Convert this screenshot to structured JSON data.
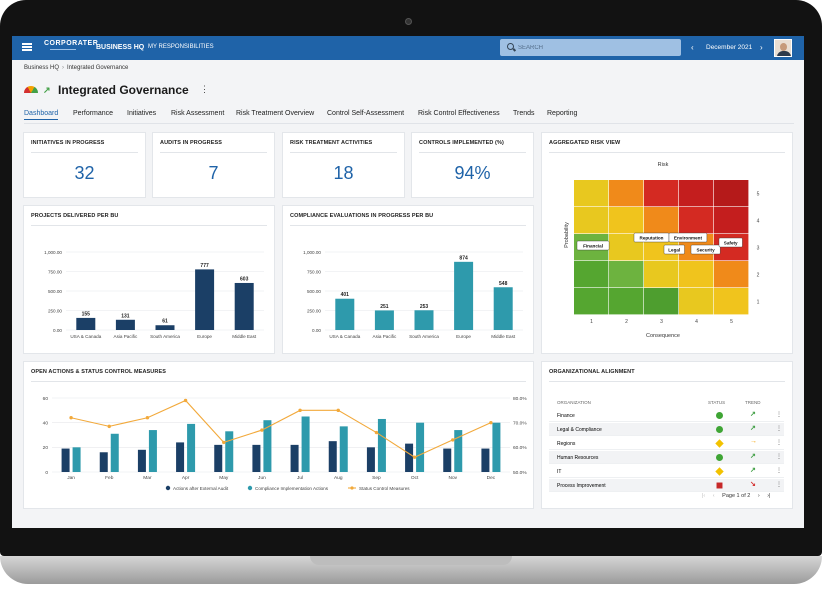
{
  "topbar": {
    "logo": "CORPORATER",
    "nav_primary": "BUSINESS HQ",
    "nav_secondary": "MY RESPONSIBILITIES",
    "search_placeholder": "SEARCH",
    "prev_icon": "‹",
    "period": "December 2021",
    "next_icon": "›",
    "brand_color": "#1f63a8"
  },
  "breadcrumb": {
    "root": "Business HQ",
    "separator": "›",
    "current": "Integrated Governance"
  },
  "page": {
    "title": "Integrated Governance",
    "kebab": "⋮",
    "trend_icon": "arrow-up-right-icon",
    "gauge_icon": "gauge-icon"
  },
  "tabs": [
    "Dashboard",
    "Performance",
    "Initiatives",
    "Risk Assessment",
    "Risk Treatment Overview",
    "Control Self-Assessment",
    "Risk Control Effectiveness",
    "Trends",
    "Reporting"
  ],
  "kpis": [
    {
      "title": "INITIATIVES IN PROGRESS",
      "value": "32"
    },
    {
      "title": "AUDITS IN PROGRESS",
      "value": "7"
    },
    {
      "title": "RISK TREATMENT ACTIVITIES",
      "value": "18"
    },
    {
      "title": "CONTROLS IMPLEMENTED (%)",
      "value": "94%"
    }
  ],
  "risk_view": {
    "title": "AGGREGATED RISK VIEW",
    "top_label": "Risk",
    "x_label": "Consequence",
    "y_label": "Probability",
    "x_ticks": [
      "1",
      "2",
      "3",
      "4",
      "5"
    ],
    "y_ticks": [
      "5",
      "4",
      "3",
      "2",
      "1"
    ],
    "cell_colors": [
      [
        "#e8c81f",
        "#f08a1a",
        "#d42a22",
        "#c41e1e",
        "#b51a1a"
      ],
      [
        "#e8c81f",
        "#f0c41d",
        "#f08a1a",
        "#d42a22",
        "#c41e1e"
      ],
      [
        "#6db33f",
        "#e8c81f",
        "#f0c41d",
        "#f08a1a",
        "#d42a22"
      ],
      [
        "#55a630",
        "#6db33f",
        "#e8c81f",
        "#f0c41d",
        "#f08a1a"
      ],
      [
        "#55a630",
        "#55a630",
        "#4e9e2f",
        "#e8c81f",
        "#f0c41d"
      ]
    ],
    "labels": [
      "Financial",
      "Reputation",
      "Environment",
      "Legal",
      "Security",
      "Safety"
    ]
  },
  "chart_data": [
    {
      "type": "bar",
      "title": "PROJECTS DELIVERED PER BU",
      "categories": [
        "USA & Canada",
        "Asia Pacific",
        "South America",
        "Europe",
        "Middle East"
      ],
      "values": [
        155,
        131,
        61,
        777,
        603
      ],
      "y_ticks": [
        "1,000.00",
        "750.00",
        "500.00",
        "250.00",
        "0.00"
      ],
      "ylim": [
        0,
        1000
      ],
      "color": "#1b3f66"
    },
    {
      "type": "bar",
      "title": "COMPLIANCE EVALUATIONS IN PROGRESS PER BU",
      "categories": [
        "USA & Canada",
        "Asia Pacific",
        "South America",
        "Europe",
        "Middle East"
      ],
      "values": [
        401,
        251,
        253,
        874,
        548
      ],
      "y_ticks": [
        "1,000.00",
        "750.00",
        "500.00",
        "250.00",
        "0.00"
      ],
      "ylim": [
        0,
        1000
      ],
      "color": "#2e9aac"
    },
    {
      "type": "bar+line",
      "title": "OPEN ACTIONS & STATUS CONTROL MEASURES",
      "categories": [
        "Jan",
        "Feb",
        "Mar",
        "Apr",
        "May",
        "Jun",
        "Jul",
        "Aug",
        "Sep",
        "Oct",
        "Nov",
        "Dec"
      ],
      "y_ticks_left": [
        "60",
        "40",
        "20",
        "0"
      ],
      "y_ticks_right": [
        "80.0%",
        "70.0%",
        "60.0%",
        "50.0%"
      ],
      "ylim_left": [
        0,
        60
      ],
      "ylim_right": [
        50,
        80
      ],
      "series": [
        {
          "name": "Actions after External Audit",
          "kind": "bar",
          "color": "#1b3f66",
          "values": [
            19,
            16,
            18,
            24,
            22,
            22,
            22,
            25,
            20,
            23,
            19,
            19
          ]
        },
        {
          "name": "Compliance Implementation Actions",
          "kind": "bar",
          "color": "#2e9aac",
          "values": [
            20,
            31,
            34,
            39,
            33,
            42,
            45,
            37,
            43,
            40,
            34,
            40
          ]
        },
        {
          "name": "Status Control Measures",
          "kind": "line",
          "color": "#f2a93b",
          "values": [
            72,
            68.5,
            72,
            79,
            62,
            67,
            75,
            75,
            66,
            56,
            63,
            70
          ]
        }
      ]
    }
  ],
  "alignment": {
    "title": "ORGANIZATIONAL ALIGNMENT",
    "col_org": "ORGANIZATION",
    "col_status": "STATUS",
    "col_trend": "TREND",
    "rows": [
      {
        "name": "Finance",
        "status": "circle-green",
        "trend": "↗",
        "trend_color": "#43a047"
      },
      {
        "name": "Legal & Compliance",
        "status": "circle-green",
        "trend": "↗",
        "trend_color": "#43a047"
      },
      {
        "name": "Regions",
        "status": "diamond-yellow",
        "trend": "→",
        "trend_color": "#f4a000"
      },
      {
        "name": "Human Resources",
        "status": "circle-green",
        "trend": "↗",
        "trend_color": "#43a047"
      },
      {
        "name": "IT",
        "status": "diamond-yellow",
        "trend": "↗",
        "trend_color": "#43a047"
      },
      {
        "name": "Process Improvement",
        "status": "square-red",
        "trend": "↘",
        "trend_color": "#d32f2f"
      }
    ],
    "more_icon": "⋮",
    "pager": {
      "first": "|‹",
      "prev": "‹",
      "label": "Page 1 of 2",
      "next": "›",
      "last": "›|"
    }
  }
}
